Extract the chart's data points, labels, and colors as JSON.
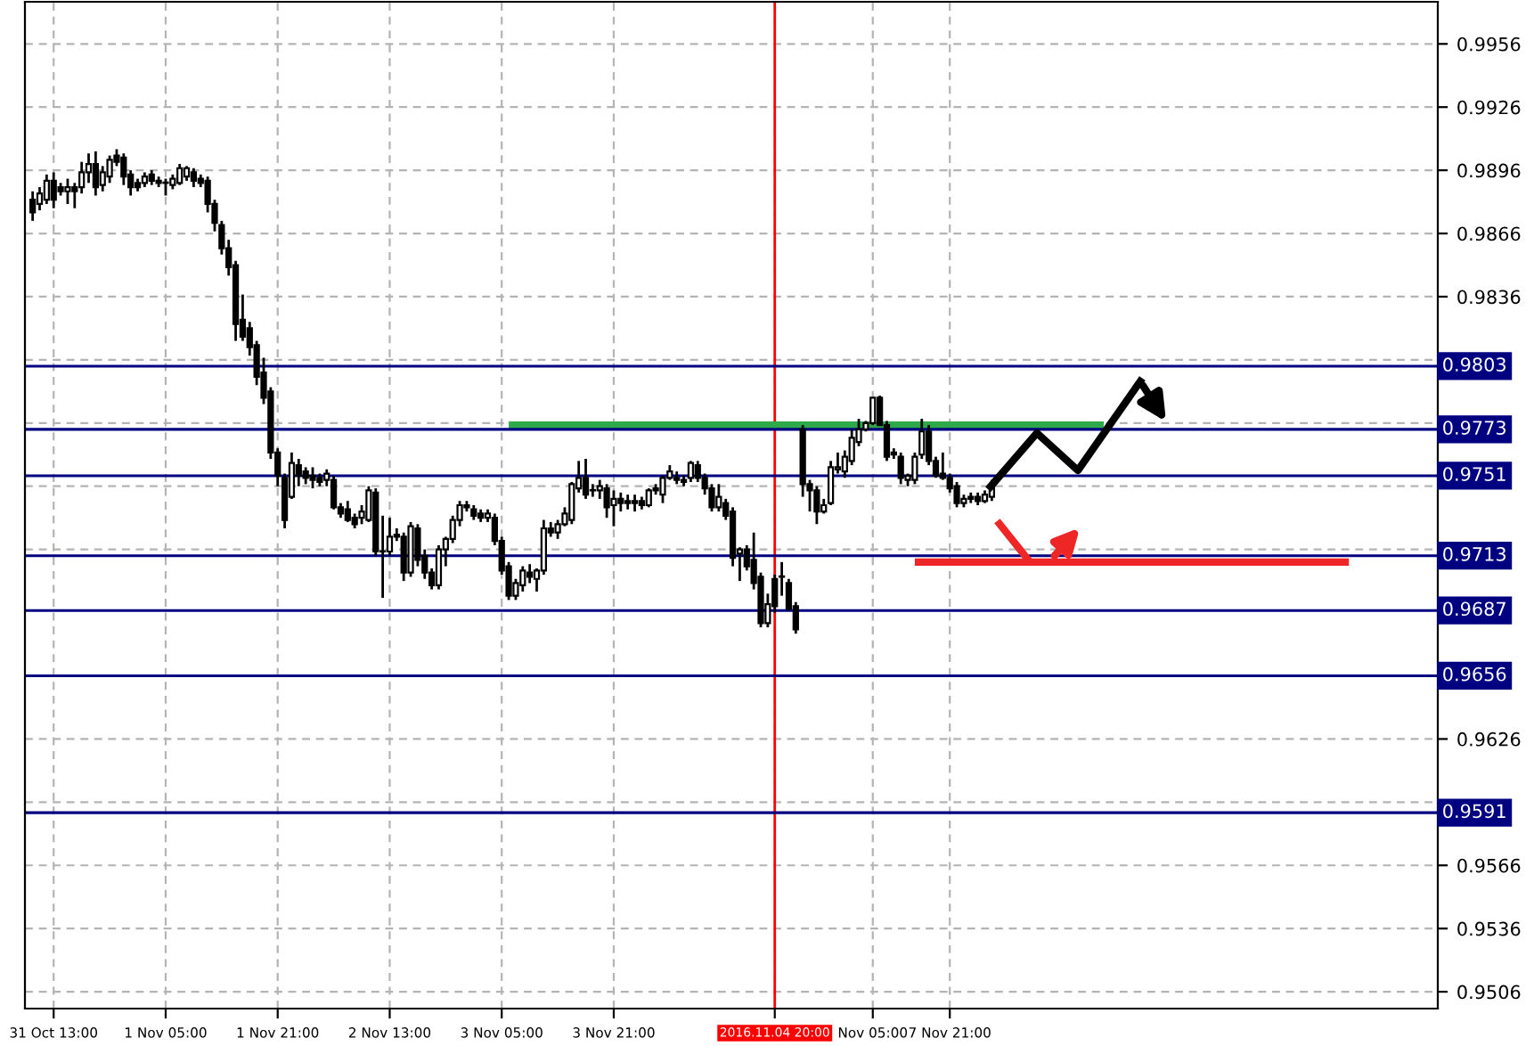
{
  "chart_data": {
    "type": "candlestick",
    "color": "#000000",
    "categories": [
      null,
      null,
      null,
      "31 Oct 13:00",
      null,
      null,
      null,
      null,
      null,
      null,
      null,
      null,
      null,
      null,
      null,
      null,
      null,
      null,
      null,
      "1 Nov 05:00",
      null,
      null,
      null,
      null,
      null,
      null,
      null,
      null,
      null,
      null,
      null,
      null,
      null,
      null,
      null,
      "1 Nov 21:00",
      null,
      null,
      null,
      null,
      null,
      null,
      null,
      null,
      null,
      null,
      null,
      null,
      null,
      null,
      null,
      "2 Nov 13:00",
      null,
      null,
      null,
      null,
      null,
      null,
      null,
      null,
      null,
      null,
      null,
      null,
      null,
      null,
      null,
      "3 Nov 05:00",
      null,
      null,
      null,
      null,
      null,
      null,
      null,
      null,
      null,
      null,
      null,
      null,
      null,
      null,
      null,
      "3 Nov 21:00",
      null,
      null,
      null,
      null,
      null,
      null,
      null,
      null,
      null,
      null,
      null,
      null,
      null,
      null,
      null,
      null,
      null,
      null,
      null,
      null,
      null,
      null,
      "2016.11.04 20:00",
      null,
      null,
      null,
      null,
      null,
      null,
      null,
      null,
      null,
      null,
      null,
      null,
      null,
      "Nov 05:00",
      null,
      null,
      null,
      null,
      null,
      null,
      null,
      null,
      null,
      null,
      "7 Nov 21:00",
      null,
      null,
      null,
      null,
      null,
      null,
      null,
      null,
      null,
      null,
      null,
      null,
      null,
      null,
      null,
      null,
      null,
      null,
      null,
      null,
      null,
      null,
      null,
      null,
      null,
      null,
      null,
      null,
      null,
      null,
      null,
      null,
      null,
      null,
      null,
      null,
      null,
      null,
      null,
      null,
      null,
      null,
      null,
      null,
      null,
      null,
      null,
      null,
      null,
      null,
      null,
      null,
      null,
      null,
      null,
      null,
      null,
      null,
      null,
      null,
      null,
      null,
      null,
      null,
      null,
      null,
      null,
      null,
      null
    ],
    "ohlc": [
      [
        0.9882,
        0.9886,
        0.9872,
        0.9876
      ],
      [
        0.988,
        0.9888,
        0.9877,
        0.9885
      ],
      [
        0.9882,
        0.9894,
        0.988,
        0.9891
      ],
      [
        0.9891,
        0.9895,
        0.9878,
        0.9882
      ],
      [
        0.9888,
        0.989,
        0.9884,
        0.9886
      ],
      [
        0.9886,
        0.9892,
        0.988,
        0.9888
      ],
      [
        0.9888,
        0.989,
        0.9878,
        0.9886
      ],
      [
        0.9888,
        0.99,
        0.9885,
        0.9895
      ],
      [
        0.9895,
        0.9904,
        0.989,
        0.9899
      ],
      [
        0.9899,
        0.9905,
        0.9884,
        0.9888
      ],
      [
        0.9889,
        0.9898,
        0.9886,
        0.9895
      ],
      [
        0.9893,
        0.9903,
        0.989,
        0.9901
      ],
      [
        0.9903,
        0.9906,
        0.9898,
        0.99
      ],
      [
        0.9902,
        0.9904,
        0.9889,
        0.9893
      ],
      [
        0.9894,
        0.9896,
        0.9884,
        0.9888
      ],
      [
        0.989,
        0.9892,
        0.9886,
        0.9888
      ],
      [
        0.989,
        0.9895,
        0.9888,
        0.9893
      ],
      [
        0.9894,
        0.9896,
        0.9889,
        0.9891
      ],
      [
        0.9891,
        0.9893,
        0.9888,
        0.989
      ],
      [
        0.989,
        0.9892,
        0.9884,
        0.989
      ],
      [
        0.9889,
        0.9894,
        0.9887,
        0.9892
      ],
      [
        0.989,
        0.9899,
        0.9889,
        0.9897
      ],
      [
        0.9893,
        0.9898,
        0.9891,
        0.9897
      ],
      [
        0.9895,
        0.9897,
        0.9888,
        0.9891
      ],
      [
        0.9892,
        0.9894,
        0.9888,
        0.989
      ],
      [
        0.9891,
        0.9893,
        0.9876,
        0.988
      ],
      [
        0.988,
        0.9882,
        0.9867,
        0.9871
      ],
      [
        0.987,
        0.9872,
        0.9856,
        0.9859
      ],
      [
        0.9859,
        0.9863,
        0.9846,
        0.985
      ],
      [
        0.9851,
        0.9853,
        0.9815,
        0.9823
      ],
      [
        0.9825,
        0.9837,
        0.9815,
        0.9817
      ],
      [
        0.9821,
        0.9824,
        0.9808,
        0.9812
      ],
      [
        0.9813,
        0.9815,
        0.9794,
        0.9798
      ],
      [
        0.98,
        0.9807,
        0.9785,
        0.9788
      ],
      [
        0.9791,
        0.9793,
        0.9759,
        0.9762
      ],
      [
        0.9762,
        0.9764,
        0.9746,
        0.9751
      ],
      [
        0.975,
        0.9752,
        0.9726,
        0.973
      ],
      [
        0.9741,
        0.9762,
        0.974,
        0.9757
      ],
      [
        0.9756,
        0.9759,
        0.9746,
        0.9751
      ],
      [
        0.9753,
        0.9755,
        0.9747,
        0.975
      ],
      [
        0.9751,
        0.9755,
        0.9745,
        0.9749
      ],
      [
        0.975,
        0.9752,
        0.9746,
        0.9748
      ],
      [
        0.9749,
        0.9754,
        0.9746,
        0.9752
      ],
      [
        0.9749,
        0.9751,
        0.9735,
        0.9736
      ],
      [
        0.9736,
        0.9738,
        0.9731,
        0.9733
      ],
      [
        0.9735,
        0.9739,
        0.9729,
        0.973
      ],
      [
        0.9731,
        0.9733,
        0.9726,
        0.9728
      ],
      [
        0.9731,
        0.9737,
        0.9728,
        0.9734
      ],
      [
        0.973,
        0.9746,
        0.9729,
        0.9744
      ],
      [
        0.9743,
        0.9745,
        0.9713,
        0.9715
      ],
      [
        0.9715,
        0.9732,
        0.9693,
        0.9715
      ],
      [
        0.9715,
        0.9731,
        0.9713,
        0.9722
      ],
      [
        0.9722,
        0.9726,
        0.972,
        0.9723
      ],
      [
        0.9722,
        0.9724,
        0.9701,
        0.9705
      ],
      [
        0.9705,
        0.9729,
        0.9703,
        0.9727
      ],
      [
        0.9726,
        0.9728,
        0.9708,
        0.9711
      ],
      [
        0.9713,
        0.9716,
        0.9702,
        0.9705
      ],
      [
        0.9705,
        0.9707,
        0.9697,
        0.9699
      ],
      [
        0.9699,
        0.9718,
        0.9697,
        0.9716
      ],
      [
        0.9716,
        0.9722,
        0.9708,
        0.9721
      ],
      [
        0.9721,
        0.9732,
        0.9719,
        0.973
      ],
      [
        0.973,
        0.9739,
        0.9727,
        0.9737
      ],
      [
        0.9737,
        0.9739,
        0.9734,
        0.9736
      ],
      [
        0.9735,
        0.9737,
        0.973,
        0.9732
      ],
      [
        0.9733,
        0.9735,
        0.9729,
        0.9731
      ],
      [
        0.9731,
        0.9735,
        0.9729,
        0.9733
      ],
      [
        0.9731,
        0.9733,
        0.9718,
        0.972
      ],
      [
        0.972,
        0.9722,
        0.9704,
        0.9706
      ],
      [
        0.9708,
        0.971,
        0.9692,
        0.9694
      ],
      [
        0.9694,
        0.9702,
        0.9692,
        0.97
      ],
      [
        0.9699,
        0.9708,
        0.9696,
        0.9706
      ],
      [
        0.9705,
        0.9709,
        0.97,
        0.9703
      ],
      [
        0.9702,
        0.9707,
        0.9696,
        0.9706
      ],
      [
        0.9706,
        0.973,
        0.9704,
        0.9726
      ],
      [
        0.9726,
        0.9729,
        0.9722,
        0.9724
      ],
      [
        0.9724,
        0.973,
        0.9721,
        0.9728
      ],
      [
        0.9728,
        0.9736,
        0.9727,
        0.9733
      ],
      [
        0.973,
        0.9748,
        0.9728,
        0.9747
      ],
      [
        0.9745,
        0.9758,
        0.9743,
        0.975
      ],
      [
        0.975,
        0.9759,
        0.974,
        0.9742
      ],
      [
        0.9744,
        0.9747,
        0.9741,
        0.9744
      ],
      [
        0.9744,
        0.9749,
        0.974,
        0.9746
      ],
      [
        0.9745,
        0.9747,
        0.9731,
        0.9736
      ],
      [
        0.9737,
        0.9744,
        0.9727,
        0.974
      ],
      [
        0.974,
        0.9743,
        0.9734,
        0.9738
      ],
      [
        0.9739,
        0.9742,
        0.9735,
        0.9738
      ],
      [
        0.9738,
        0.9742,
        0.9734,
        0.9739
      ],
      [
        0.9739,
        0.9741,
        0.9735,
        0.9737
      ],
      [
        0.9737,
        0.9745,
        0.9736,
        0.9744
      ],
      [
        0.9744,
        0.9747,
        0.9742,
        0.9745
      ],
      [
        0.9742,
        0.9751,
        0.9738,
        0.975
      ],
      [
        0.975,
        0.9756,
        0.9749,
        0.9753
      ],
      [
        0.975,
        0.9753,
        0.9747,
        0.9749
      ],
      [
        0.9749,
        0.9751,
        0.9746,
        0.9748
      ],
      [
        0.975,
        0.9758,
        0.9748,
        0.9757
      ],
      [
        0.9756,
        0.9758,
        0.9748,
        0.975
      ],
      [
        0.975,
        0.9752,
        0.9742,
        0.9745
      ],
      [
        0.9745,
        0.9747,
        0.9734,
        0.9736
      ],
      [
        0.9736,
        0.9747,
        0.9734,
        0.9741
      ],
      [
        0.9738,
        0.974,
        0.973,
        0.9732
      ],
      [
        0.9734,
        0.9736,
        0.9708,
        0.9712
      ],
      [
        0.9714,
        0.9717,
        0.9701,
        0.9716
      ],
      [
        0.9716,
        0.9718,
        0.9706,
        0.9708
      ],
      [
        0.9711,
        0.9724,
        0.9697,
        0.97
      ],
      [
        0.9703,
        0.9705,
        0.9679,
        0.9681
      ],
      [
        0.9681,
        0.9695,
        0.9679,
        0.969
      ],
      [
        0.9702,
        0.9704,
        0.9686,
        0.9689
      ],
      [
        0.9703,
        0.971,
        0.9694,
        0.9703
      ],
      [
        0.97,
        0.9702,
        0.9687,
        0.9688
      ],
      [
        0.9689,
        0.9691,
        0.9676,
        0.9678
      ],
      [
        0.9773,
        0.9775,
        0.9741,
        0.9747
      ],
      [
        0.9747,
        0.9749,
        0.9734,
        0.9744
      ],
      [
        0.9744,
        0.9746,
        0.9728,
        0.9734
      ],
      [
        0.9734,
        0.974,
        0.9733,
        0.9737
      ],
      [
        0.9738,
        0.9758,
        0.9737,
        0.9755
      ],
      [
        0.9754,
        0.9762,
        0.9752,
        0.9755
      ],
      [
        0.9753,
        0.9763,
        0.975,
        0.976
      ],
      [
        0.9758,
        0.9773,
        0.9756,
        0.9769
      ],
      [
        0.9767,
        0.9778,
        0.9765,
        0.9773
      ],
      [
        0.9773,
        0.9777,
        0.9772,
        0.9776
      ],
      [
        0.9776,
        0.9788,
        0.9775,
        0.9788
      ],
      [
        0.9788,
        0.9789,
        0.9775,
        0.9775
      ],
      [
        0.9775,
        0.9777,
        0.9758,
        0.976
      ],
      [
        0.9762,
        0.9764,
        0.9759,
        0.9761
      ],
      [
        0.976,
        0.9762,
        0.9747,
        0.975
      ],
      [
        0.9749,
        0.9752,
        0.9746,
        0.9751
      ],
      [
        0.9749,
        0.9762,
        0.9747,
        0.976
      ],
      [
        0.9761,
        0.9778,
        0.9759,
        0.9772
      ],
      [
        0.9772,
        0.9775,
        0.9756,
        0.9758
      ],
      [
        0.9758,
        0.976,
        0.975,
        0.9751
      ],
      [
        0.9752,
        0.9762,
        0.9749,
        0.975
      ],
      [
        0.975,
        0.9752,
        0.9743,
        0.9745
      ],
      [
        0.9746,
        0.9748,
        0.9736,
        0.9738
      ],
      [
        0.9738,
        0.9742,
        0.9736,
        0.974
      ],
      [
        0.974,
        0.9743,
        0.9738,
        0.9741
      ],
      [
        0.9741,
        0.9743,
        0.9737,
        0.9739
      ],
      [
        0.9739,
        0.9744,
        0.9738,
        0.9742
      ],
      [
        0.9741,
        0.9749,
        0.9739,
        0.9745
      ],
      null,
      null,
      null,
      null,
      null,
      null,
      null,
      null,
      null,
      null,
      null,
      null,
      null,
      null,
      null,
      null,
      null,
      null,
      null,
      null,
      null,
      null,
      null,
      null,
      null,
      null,
      null,
      null,
      null,
      null,
      null,
      null,
      null,
      null,
      null,
      null,
      null,
      null,
      null,
      null,
      null,
      null,
      null,
      null,
      null,
      null,
      null,
      null,
      null,
      null,
      null,
      null,
      null,
      null,
      null,
      null,
      null,
      null,
      null,
      null,
      null,
      null,
      null
    ],
    "series": [
      {
        "type": "line",
        "color": "#2eaa4a",
        "values": [
          null,
          null,
          null,
          null,
          null,
          null,
          null,
          null,
          null,
          null,
          null,
          null,
          null,
          null,
          null,
          null,
          null,
          null,
          null,
          null,
          null,
          null,
          null,
          null,
          null,
          null,
          null,
          null,
          null,
          null,
          null,
          null,
          null,
          null,
          null,
          null,
          null,
          null,
          null,
          null,
          null,
          null,
          null,
          null,
          null,
          null,
          null,
          null,
          null,
          null,
          null,
          null,
          null,
          null,
          null,
          null,
          null,
          null,
          null,
          null,
          null,
          null,
          null,
          null,
          null,
          null,
          null,
          null,
          0.9775,
          0.9775,
          0.9775,
          0.9775,
          0.9775,
          0.9775,
          0.9775,
          0.9775,
          0.9775,
          0.9775,
          0.9775,
          0.9775,
          0.9775,
          0.9775,
          0.9775,
          0.9775,
          0.9775,
          0.9775,
          0.9775,
          0.9775,
          0.9775,
          0.9775,
          0.9775,
          0.9775,
          0.9775,
          0.9775,
          0.9775,
          0.9775,
          0.9775,
          0.9775,
          0.9775,
          0.9775,
          0.9775,
          0.9775,
          0.9775,
          0.9775,
          0.9775,
          0.9775,
          0.9775,
          0.9775,
          0.9775,
          0.9775,
          0.9775,
          0.9775,
          0.9775,
          0.9775,
          0.9775,
          0.9775,
          0.9775,
          0.9775,
          0.9775,
          0.9775,
          0.9775,
          0.9775,
          0.9775,
          0.9775,
          0.9775,
          0.9775,
          0.9775,
          0.9775,
          0.9775,
          0.9775,
          0.9775,
          0.9775,
          0.9775,
          0.9775,
          0.9775,
          0.9775,
          0.9775,
          0.9775,
          0.9775,
          0.9775,
          0.9775,
          0.9775,
          0.9775,
          0.9775,
          0.9775,
          0.9775,
          0.9775,
          0.9775,
          0.9775,
          0.9775,
          0.9775,
          0.9775,
          0.9775,
          0.9775,
          null,
          null,
          null,
          null,
          null,
          null,
          null,
          null,
          null,
          null,
          null,
          null,
          null,
          null,
          null,
          null,
          null,
          null,
          null,
          null,
          null,
          null,
          null,
          null,
          null,
          null,
          null,
          null,
          null,
          null,
          null,
          null,
          null,
          null,
          null,
          null,
          null,
          null,
          null,
          null,
          null,
          null,
          null,
          null,
          null,
          null,
          null
        ]
      },
      {
        "type": "line",
        "color": "#ee2626",
        "values": [
          null,
          null,
          null,
          null,
          null,
          null,
          null,
          null,
          null,
          null,
          null,
          null,
          null,
          null,
          null,
          null,
          null,
          null,
          null,
          null,
          null,
          null,
          null,
          null,
          null,
          null,
          null,
          null,
          null,
          null,
          null,
          null,
          null,
          null,
          null,
          null,
          null,
          null,
          null,
          null,
          null,
          null,
          null,
          null,
          null,
          null,
          null,
          null,
          null,
          null,
          null,
          null,
          null,
          null,
          null,
          null,
          null,
          null,
          null,
          null,
          null,
          null,
          null,
          null,
          null,
          null,
          null,
          null,
          null,
          null,
          null,
          null,
          null,
          null,
          null,
          null,
          null,
          null,
          null,
          null,
          null,
          null,
          null,
          null,
          null,
          null,
          null,
          null,
          null,
          null,
          null,
          null,
          null,
          null,
          null,
          null,
          null,
          null,
          null,
          null,
          null,
          null,
          null,
          null,
          null,
          null,
          null,
          null,
          null,
          null,
          null,
          null,
          null,
          null,
          null,
          null,
          null,
          null,
          null,
          null,
          null,
          null,
          null,
          null,
          null,
          null,
          0.971,
          0.971,
          0.971,
          0.971,
          0.971,
          0.971,
          0.971,
          0.971,
          0.971,
          0.971,
          0.971,
          0.971,
          0.971,
          0.971,
          0.971,
          0.971,
          0.971,
          0.971,
          0.971,
          0.971,
          0.971,
          0.971,
          0.971,
          0.971,
          0.971,
          0.971,
          0.971,
          0.971,
          0.971,
          0.971,
          0.971,
          0.971,
          0.971,
          0.971,
          0.971,
          0.971,
          0.971,
          0.971,
          0.971,
          0.971,
          0.971,
          0.971,
          0.971,
          0.971,
          0.971,
          0.971,
          0.971,
          0.971,
          0.971,
          0.971,
          0.971,
          0.971,
          0.971,
          0.971,
          0.971,
          0.971,
          0.971,
          0.971,
          0.971,
          0.971,
          0.971,
          0.971,
          0.971,
          null,
          null,
          null,
          null,
          null,
          null,
          null,
          null,
          null,
          null,
          null,
          null
        ]
      }
    ],
    "ylim": [
      0.9498,
      0.9976
    ],
    "yticks": [
      0.9506,
      0.9536,
      0.9566,
      {
        "value": 0.9596,
        "label": null
      },
      0.9626,
      {
        "value": 0.9716,
        "label": null
      },
      {
        "value": 0.9746,
        "label": null
      },
      {
        "value": 0.9776,
        "label": null
      },
      {
        "value": 0.9806,
        "label": null
      },
      0.9836,
      0.9866,
      0.9896,
      0.9926,
      0.9956
    ],
    "grid": true,
    "ref_lines": [
      {
        "axis": "y",
        "value": 0.9803,
        "label": "0.9803",
        "color": "#000080"
      },
      {
        "axis": "y",
        "value": 0.9773,
        "label": "0.9773",
        "color": "#000080"
      },
      {
        "axis": "y",
        "value": 0.9751,
        "label": "0.9751",
        "color": "#000080"
      },
      {
        "axis": "y",
        "value": 0.9713,
        "label": "0.9713",
        "color": "#000080"
      },
      {
        "axis": "y",
        "value": 0.9687,
        "label": "0.9687",
        "color": "#000080"
      },
      {
        "axis": "y",
        "value": 0.9656,
        "label": "0.9656",
        "color": "#000080"
      },
      {
        "axis": "y",
        "value": 0.9591,
        "label": "0.9591",
        "color": "#000080"
      },
      {
        "axis": "x",
        "value": "2016.11.04 20:00",
        "label": null,
        "color": "#ff0000",
        "line_style": "solid"
      }
    ]
  }
}
